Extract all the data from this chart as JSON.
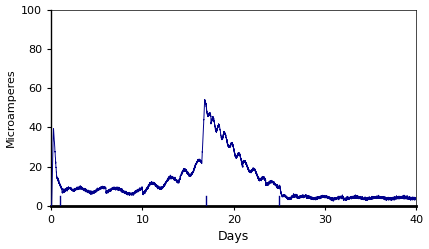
{
  "title": "",
  "xlabel": "Days",
  "ylabel": "Microamperes",
  "xlim": [
    0,
    40
  ],
  "ylim": [
    0,
    100
  ],
  "xticks": [
    0,
    10,
    20,
    30,
    40
  ],
  "yticks": [
    0,
    20,
    40,
    60,
    80,
    100
  ],
  "line_color": "#00008B",
  "vline_color": "#00008B",
  "vlines": [
    1.0,
    17.0,
    25.0
  ],
  "vline_ymax": 5,
  "background_color": "#ffffff",
  "figsize": [
    4.29,
    2.49
  ],
  "dpi": 100
}
